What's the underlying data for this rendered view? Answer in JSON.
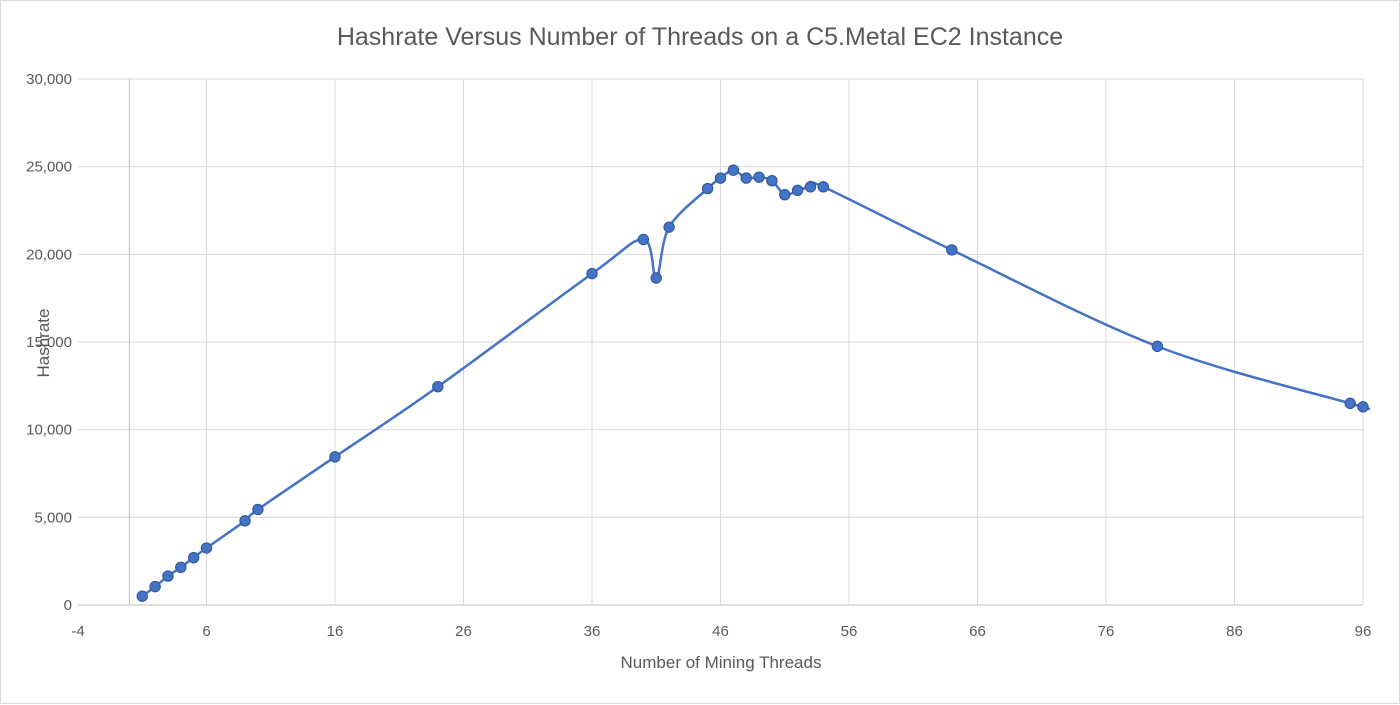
{
  "chart_data": {
    "type": "scatter",
    "title": "Hashrate Versus Number of Threads on a C5.Metal EC2 Instance",
    "xlabel": "Number of Mining Threads",
    "ylabel": "Hashrate",
    "xlim": [
      -4,
      96
    ],
    "ylim": [
      0,
      30000
    ],
    "x_ticks": [
      "-4",
      "6",
      "16",
      "26",
      "36",
      "46",
      "56",
      "66",
      "76",
      "86",
      "96"
    ],
    "y_ticks": [
      "0",
      "5,000",
      "10,000",
      "15,000",
      "20,000",
      "25,000",
      "30,000"
    ],
    "grid": true,
    "legend": "none",
    "line": "smoothed",
    "color": "#4472c4",
    "series": [
      {
        "points": [
          [
            1,
            500
          ],
          [
            2,
            1050
          ],
          [
            3,
            1650
          ],
          [
            4,
            2150
          ],
          [
            5,
            2700
          ],
          [
            6,
            3250
          ],
          [
            9,
            4800
          ],
          [
            10,
            5450
          ],
          [
            16,
            8450
          ],
          [
            24,
            12450
          ],
          [
            36,
            18900
          ],
          [
            40,
            20850
          ],
          [
            41,
            18650
          ],
          [
            42,
            21550
          ],
          [
            45,
            23750
          ],
          [
            46,
            24350
          ],
          [
            47,
            24800
          ],
          [
            48,
            24350
          ],
          [
            49,
            24400
          ],
          [
            50,
            24200
          ],
          [
            51,
            23400
          ],
          [
            52,
            23650
          ],
          [
            53,
            23850
          ],
          [
            54,
            23850
          ],
          [
            64,
            20250
          ],
          [
            80,
            14750
          ],
          [
            95,
            11500
          ],
          [
            96,
            11300
          ]
        ]
      }
    ]
  }
}
